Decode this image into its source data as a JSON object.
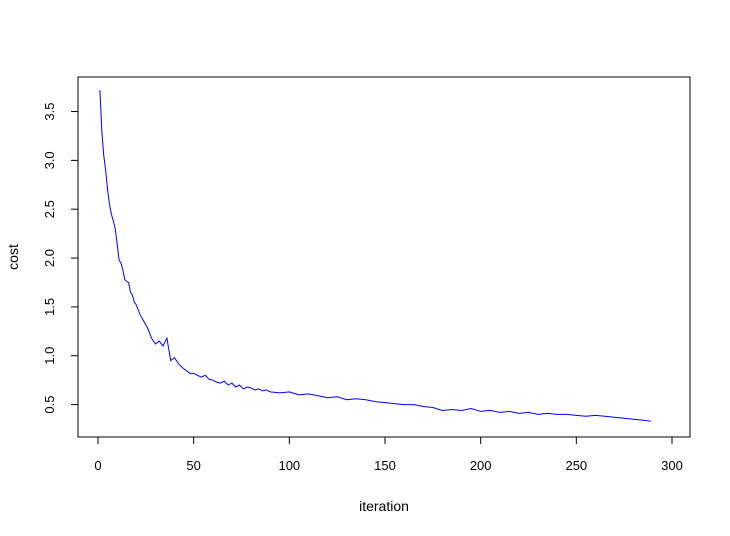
{
  "chart_data": {
    "type": "line",
    "title": "",
    "xlabel": "iteration",
    "ylabel": "cost",
    "xlim": [
      0,
      300
    ],
    "ylim": [
      0.25,
      3.7
    ],
    "xticks": [
      0,
      50,
      100,
      150,
      200,
      250,
      300
    ],
    "yticks": [
      0.5,
      1.0,
      1.5,
      2.0,
      2.5,
      3.0,
      3.5
    ],
    "xtick_labels": [
      "0",
      "50",
      "100",
      "150",
      "200",
      "250",
      "300"
    ],
    "ytick_labels": [
      "0.5",
      "1.0",
      "1.5",
      "2.0",
      "2.5",
      "3.0",
      "3.5"
    ],
    "grid": false,
    "series": [
      {
        "color": "#0000ff",
        "x": [
          1,
          2,
          3,
          4,
          5,
          6,
          7,
          8,
          9,
          10,
          11,
          12,
          13,
          14,
          15,
          16,
          17,
          18,
          19,
          20,
          22,
          24,
          26,
          28,
          30,
          32,
          34,
          36,
          38,
          40,
          42,
          44,
          46,
          48,
          50,
          52,
          54,
          56,
          58,
          60,
          62,
          64,
          66,
          68,
          70,
          72,
          74,
          76,
          78,
          80,
          82,
          84,
          86,
          88,
          90,
          95,
          100,
          105,
          110,
          115,
          120,
          125,
          130,
          135,
          140,
          145,
          150,
          155,
          160,
          165,
          170,
          175,
          180,
          185,
          190,
          195,
          200,
          205,
          210,
          215,
          220,
          225,
          230,
          235,
          240,
          245,
          250,
          255,
          260,
          265,
          270,
          275,
          280,
          285,
          289
        ],
        "values": [
          3.72,
          3.3,
          3.05,
          2.9,
          2.7,
          2.55,
          2.45,
          2.38,
          2.3,
          2.15,
          1.98,
          1.95,
          1.88,
          1.78,
          1.76,
          1.75,
          1.65,
          1.62,
          1.55,
          1.52,
          1.42,
          1.35,
          1.28,
          1.18,
          1.12,
          1.15,
          1.1,
          1.18,
          0.95,
          0.98,
          0.92,
          0.88,
          0.85,
          0.82,
          0.82,
          0.8,
          0.78,
          0.8,
          0.76,
          0.75,
          0.73,
          0.72,
          0.74,
          0.7,
          0.72,
          0.68,
          0.7,
          0.66,
          0.68,
          0.67,
          0.65,
          0.66,
          0.64,
          0.65,
          0.63,
          0.62,
          0.63,
          0.6,
          0.61,
          0.59,
          0.57,
          0.58,
          0.55,
          0.56,
          0.55,
          0.53,
          0.52,
          0.51,
          0.5,
          0.5,
          0.48,
          0.47,
          0.44,
          0.45,
          0.44,
          0.46,
          0.43,
          0.44,
          0.42,
          0.43,
          0.41,
          0.42,
          0.4,
          0.41,
          0.4,
          0.4,
          0.39,
          0.38,
          0.39,
          0.38,
          0.37,
          0.36,
          0.35,
          0.34,
          0.33
        ]
      }
    ]
  }
}
